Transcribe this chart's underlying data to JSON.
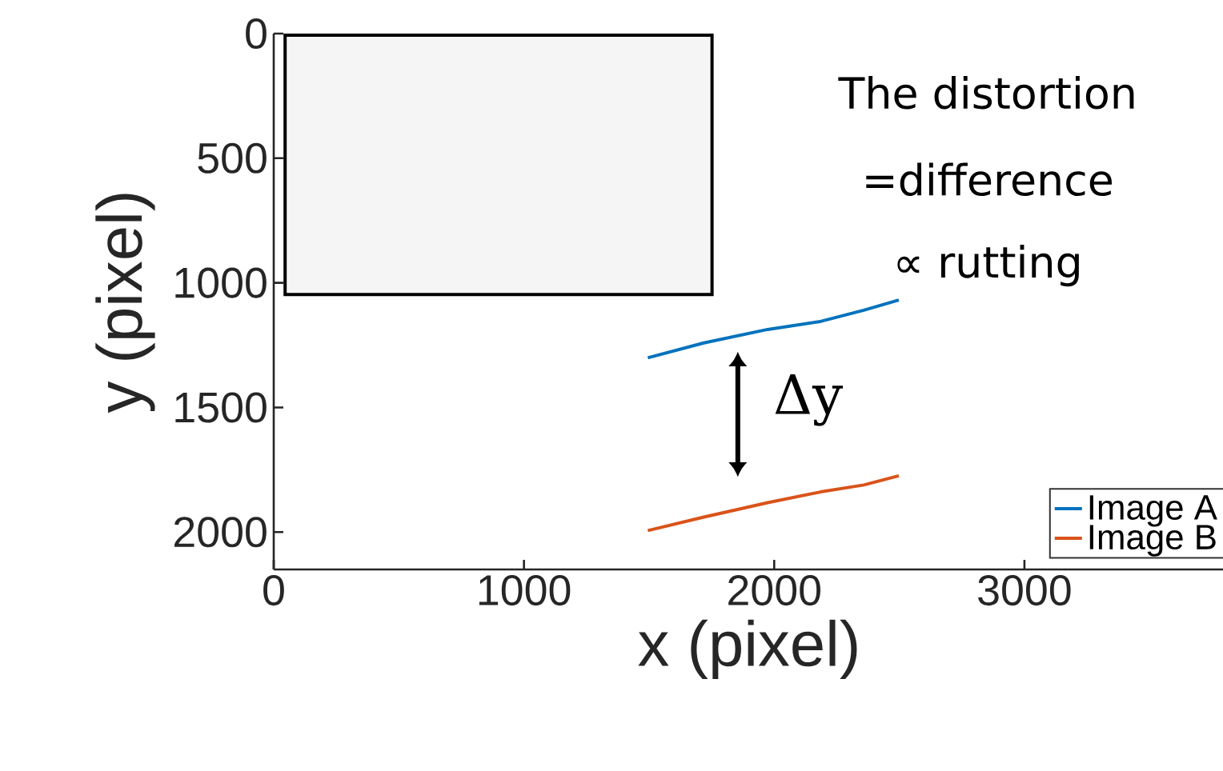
{
  "chart_data": {
    "type": "line",
    "xlabel": "x (pixel)",
    "ylabel": "y (pixel)",
    "xlim": [
      0,
      3800
    ],
    "xticks": [
      0,
      1000,
      2000,
      3000
    ],
    "ylim": [
      2150,
      0
    ],
    "yticks": [
      0,
      500,
      1000,
      1500,
      2000
    ],
    "series": [
      {
        "name": "Image A",
        "color": "#0072bd",
        "x": [
          1495,
          1719,
          1974,
          2185,
          2358,
          2498
        ],
        "values": [
          1301,
          1241,
          1187,
          1155,
          1110,
          1069
        ]
      },
      {
        "name": "Image B",
        "color": "#d95319",
        "x": [
          1495,
          1719,
          1974,
          2185,
          2358,
          2498
        ],
        "values": [
          1994,
          1940,
          1882,
          1839,
          1811,
          1774
        ]
      }
    ],
    "annotations": [
      "The distortion",
      "=difference",
      "∝ rutting",
      "Δy"
    ],
    "legend": "bottom right",
    "grid": false,
    "marker": "none",
    "line_style": "solid"
  }
}
